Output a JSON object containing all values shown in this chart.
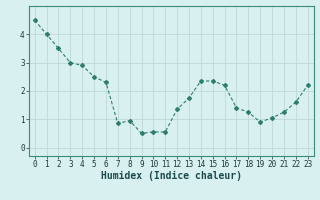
{
  "x": [
    0,
    1,
    2,
    3,
    4,
    5,
    6,
    7,
    8,
    9,
    10,
    11,
    12,
    13,
    14,
    15,
    16,
    17,
    18,
    19,
    20,
    21,
    22,
    23
  ],
  "y": [
    4.5,
    4.0,
    3.5,
    3.0,
    2.9,
    2.5,
    2.3,
    0.85,
    0.95,
    0.5,
    0.55,
    0.55,
    1.35,
    1.75,
    2.35,
    2.35,
    2.2,
    1.4,
    1.25,
    0.9,
    1.05,
    1.25,
    1.6,
    2.2
  ],
  "line_color": "#2e7d6e",
  "marker": "D",
  "marker_size": 2.0,
  "line_width": 0.8,
  "xlabel": "Humidex (Indice chaleur)",
  "xlabel_fontsize": 7,
  "background_color": "#d8f0ef",
  "grid_color": "#c0d8d8",
  "ylim": [
    -0.3,
    5.0
  ],
  "xlim": [
    -0.5,
    23.5
  ],
  "yticks": [
    0,
    1,
    2,
    3,
    4
  ],
  "xticks": [
    0,
    1,
    2,
    3,
    4,
    5,
    6,
    7,
    8,
    9,
    10,
    11,
    12,
    13,
    14,
    15,
    16,
    17,
    18,
    19,
    20,
    21,
    22,
    23
  ],
  "tick_fontsize": 5.5,
  "spine_color": "#3a8a7a"
}
